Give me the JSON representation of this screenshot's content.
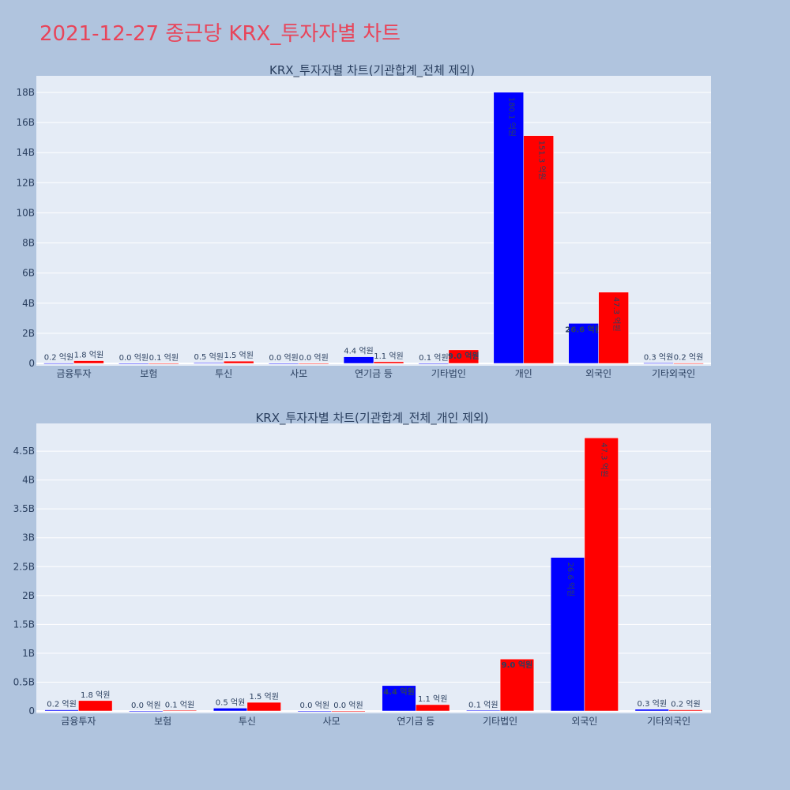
{
  "title": "2021-12-27 종근당 KRX_투자자별 차트",
  "colors": {
    "buy": "#0000ff",
    "sell": "#ff0000",
    "plot_bg": "#e5ecf6",
    "paper_bg": "#b0c4de",
    "title": "#e8455a"
  },
  "chart_data": [
    {
      "type": "bar",
      "title": "KRX_투자자별 차트(기관합계_전체 제외)",
      "categories": [
        "금융투자",
        "보험",
        "투신",
        "사모",
        "연기금 등",
        "기타법인",
        "개인",
        "외국인",
        "기타외국인"
      ],
      "series": [
        {
          "values": [
            20000000,
            0,
            50000000,
            0,
            440000000,
            10000000,
            18010000000,
            2660000000,
            30000000
          ],
          "labels": [
            "0.2 억원",
            "0.0 억원",
            "0.5 억원",
            "0.0 억원",
            "4.4 억원",
            "0.1 억원",
            "180.1 억원",
            "26.6 억원",
            "0.3 억원"
          ]
        },
        {
          "values": [
            180000000,
            10000000,
            150000000,
            0,
            110000000,
            900000000,
            15130000000,
            4730000000,
            20000000
          ],
          "labels": [
            "1.8 억원",
            "0.1 억원",
            "1.5 억원",
            "0.0 억원",
            "1.1 억원",
            "9.0 억원",
            "151.3 억원",
            "47.3 억원",
            "0.2 억원"
          ]
        }
      ],
      "yticks": [
        0,
        2000000000,
        4000000000,
        6000000000,
        8000000000,
        10000000000,
        12000000000,
        14000000000,
        16000000000,
        18000000000
      ],
      "ytick_labels": [
        "0",
        "2B",
        "4B",
        "6B",
        "8B",
        "10B",
        "12B",
        "14B",
        "16B",
        "18B"
      ],
      "ylim": [
        0,
        19100000000
      ]
    },
    {
      "type": "bar",
      "title": "KRX_투자자별 차트(기관합계_전체_개인 제외)",
      "categories": [
        "금융투자",
        "보험",
        "투신",
        "사모",
        "연기금 등",
        "기타법인",
        "외국인",
        "기타외국인"
      ],
      "series": [
        {
          "values": [
            20000000,
            0,
            50000000,
            0,
            440000000,
            10000000,
            2660000000,
            30000000
          ],
          "labels": [
            "0.2 억원",
            "0.0 억원",
            "0.5 억원",
            "0.0 억원",
            "4.4 억원",
            "0.1 억원",
            "26.6 억원",
            "0.3 억원"
          ]
        },
        {
          "values": [
            180000000,
            10000000,
            150000000,
            0,
            110000000,
            900000000,
            4730000000,
            20000000
          ],
          "labels": [
            "1.8 억원",
            "0.1 억원",
            "1.5 억원",
            "0.0 억원",
            "1.1 억원",
            "9.0 억원",
            "47.3 억원",
            "0.2 억원"
          ]
        }
      ],
      "yticks": [
        0,
        500000000,
        1000000000,
        1500000000,
        2000000000,
        2500000000,
        3000000000,
        3500000000,
        4000000000,
        4500000000
      ],
      "ytick_labels": [
        "0",
        "0.5B",
        "1B",
        "1.5B",
        "2B",
        "2.5B",
        "3B",
        "3.5B",
        "4B",
        "4.5B"
      ],
      "ylim": [
        0,
        4980000000
      ]
    }
  ]
}
